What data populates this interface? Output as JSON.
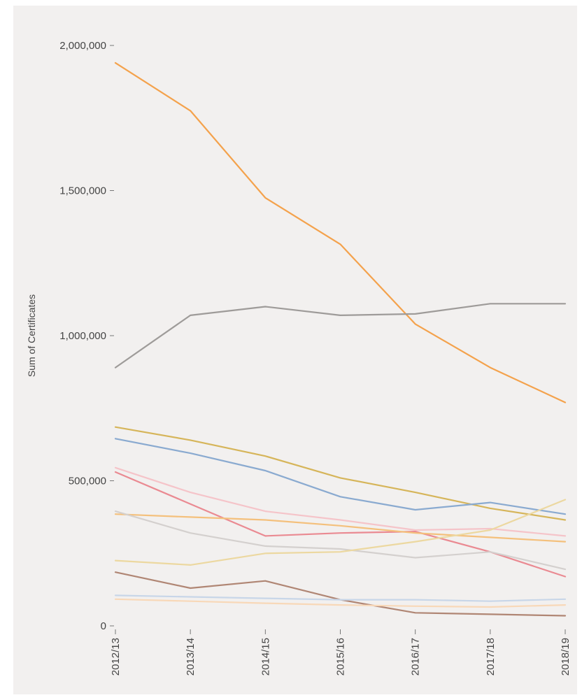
{
  "chart_data": {
    "type": "line",
    "title": "",
    "xlabel": "",
    "ylabel": "Sum of Certificates",
    "categories": [
      "2012/13",
      "2013/14",
      "2014/15",
      "2015/16",
      "2016/17",
      "2017/18",
      "2018/19"
    ],
    "ylim": [
      0,
      2000000
    ],
    "yticks": [
      0,
      500000,
      1000000,
      1500000,
      2000000
    ],
    "ytick_labels": [
      "0",
      "500,000",
      "1,000,000",
      "1,500,000",
      "2,000,000"
    ],
    "grid": false,
    "legend": "none",
    "series": [
      {
        "color": "#f4a24c",
        "values": [
          1940000,
          1775000,
          1475000,
          1315000,
          1040000,
          890000,
          770000
        ]
      },
      {
        "color": "#9e9b99",
        "values": [
          890000,
          1070000,
          1100000,
          1070000,
          1075000,
          1110000,
          1110000
        ]
      },
      {
        "color": "#d6b55a",
        "values": [
          685000,
          640000,
          585000,
          510000,
          460000,
          405000,
          365000
        ]
      },
      {
        "color": "#8aaad0",
        "values": [
          645000,
          595000,
          535000,
          445000,
          400000,
          425000,
          385000
        ]
      },
      {
        "color": "#f5c4c9",
        "values": [
          545000,
          460000,
          395000,
          365000,
          330000,
          335000,
          310000
        ]
      },
      {
        "color": "#ea8a92",
        "values": [
          530000,
          420000,
          310000,
          320000,
          325000,
          255000,
          170000
        ]
      },
      {
        "color": "#f4c07c",
        "values": [
          385000,
          375000,
          365000,
          345000,
          320000,
          305000,
          290000
        ]
      },
      {
        "color": "#d4d0ce",
        "values": [
          395000,
          320000,
          275000,
          265000,
          235000,
          255000,
          195000
        ]
      },
      {
        "color": "#ecd8a0",
        "values": [
          225000,
          210000,
          250000,
          255000,
          290000,
          330000,
          435000
        ]
      },
      {
        "color": "#b08674",
        "values": [
          185000,
          130000,
          155000,
          90000,
          45000,
          40000,
          35000
        ]
      },
      {
        "color": "#c8d6e8",
        "values": [
          105000,
          100000,
          95000,
          90000,
          90000,
          85000,
          92000
        ]
      },
      {
        "color": "#f8d8b8",
        "values": [
          92000,
          85000,
          78000,
          72000,
          68000,
          65000,
          72000
        ]
      }
    ]
  }
}
